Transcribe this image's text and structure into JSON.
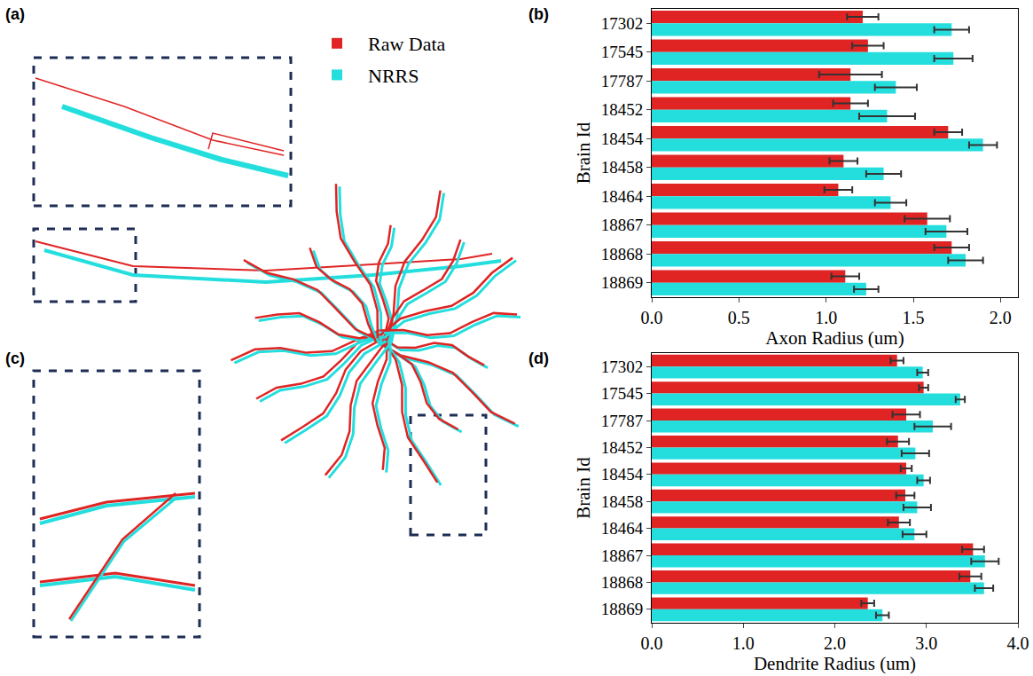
{
  "images": [
    {
      "panel": "(a)"
    },
    {
      "panel": "(c)"
    }
  ],
  "chart_data": [
    {
      "panel": "(b)",
      "type": "bar",
      "orientation": "horizontal",
      "categories": [
        "17302",
        "17545",
        "17787",
        "18452",
        "18454",
        "18458",
        "18464",
        "18867",
        "18868",
        "18869"
      ],
      "series": [
        {
          "name": "Raw Data",
          "color": "#e02424",
          "values": [
            1.21,
            1.24,
            1.14,
            1.14,
            1.7,
            1.1,
            1.07,
            1.58,
            1.72,
            1.11
          ],
          "errors": [
            0.09,
            0.09,
            0.18,
            0.1,
            0.08,
            0.08,
            0.08,
            0.13,
            0.1,
            0.08
          ]
        },
        {
          "name": "NRRS",
          "color": "#24dede",
          "values": [
            1.72,
            1.73,
            1.4,
            1.35,
            1.9,
            1.33,
            1.37,
            1.69,
            1.8,
            1.23
          ],
          "errors": [
            0.1,
            0.11,
            0.12,
            0.16,
            0.08,
            0.1,
            0.09,
            0.12,
            0.1,
            0.07
          ]
        }
      ],
      "x_label": "Axon Radius (um)",
      "y_label": "Brain Id",
      "xlim": [
        0,
        2.1
      ],
      "xticks": [
        {
          "value": 0,
          "label": "0.0"
        },
        {
          "value": 0.5,
          "label": "0.5"
        },
        {
          "value": 1,
          "label": "1.0"
        },
        {
          "value": 1.5,
          "label": "1.5"
        },
        {
          "value": 2,
          "label": "2.0"
        }
      ],
      "grid": false,
      "legend": "top"
    },
    {
      "panel": "(d)",
      "type": "bar",
      "orientation": "horizontal",
      "categories": [
        "17302",
        "17545",
        "17787",
        "18452",
        "18454",
        "18458",
        "18464",
        "18867",
        "18868",
        "18869"
      ],
      "series": [
        {
          "name": "Raw Data",
          "color": "#e02424",
          "values": [
            2.68,
            2.97,
            2.78,
            2.69,
            2.78,
            2.77,
            2.7,
            3.51,
            3.48,
            2.36
          ],
          "errors": [
            0.07,
            0.05,
            0.15,
            0.12,
            0.06,
            0.1,
            0.12,
            0.12,
            0.12,
            0.07
          ]
        },
        {
          "name": "NRRS",
          "color": "#24dede",
          "values": [
            2.96,
            3.37,
            3.07,
            2.88,
            2.97,
            2.9,
            2.87,
            3.64,
            3.63,
            2.52
          ],
          "errors": [
            0.06,
            0.05,
            0.2,
            0.15,
            0.07,
            0.15,
            0.13,
            0.15,
            0.1,
            0.07
          ]
        }
      ],
      "x_label": "Dendrite Radius (um)",
      "y_label": "Brain Id",
      "xlim": [
        0,
        4.0
      ],
      "xticks": [
        {
          "value": 0,
          "label": "0.0"
        },
        {
          "value": 1,
          "label": "1.0"
        },
        {
          "value": 2,
          "label": "2.0"
        },
        {
          "value": 3,
          "label": "3.0"
        },
        {
          "value": 4,
          "label": "4.0"
        }
      ],
      "grid": false
    }
  ]
}
